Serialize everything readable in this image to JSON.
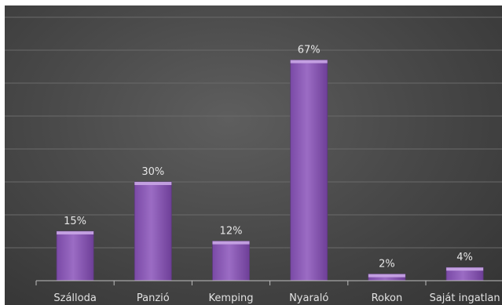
{
  "chart_data": {
    "type": "bar",
    "categories": [
      "Szálloda",
      "Panzió",
      "Kemping",
      "Nyaraló",
      "Rokon",
      "Saját ingatlan"
    ],
    "values": [
      15,
      30,
      12,
      67,
      2,
      4
    ],
    "value_labels": [
      "15%",
      "30%",
      "12%",
      "67%",
      "2%",
      "4%"
    ],
    "unit": "%",
    "ylim": [
      0,
      80
    ],
    "grid": true,
    "legend": "none",
    "bar_color": "#8b5bb3",
    "bar_highlight": "#c9a6e6",
    "bar_shadow": "#5d3a7e",
    "background": "#4a4a4a"
  }
}
